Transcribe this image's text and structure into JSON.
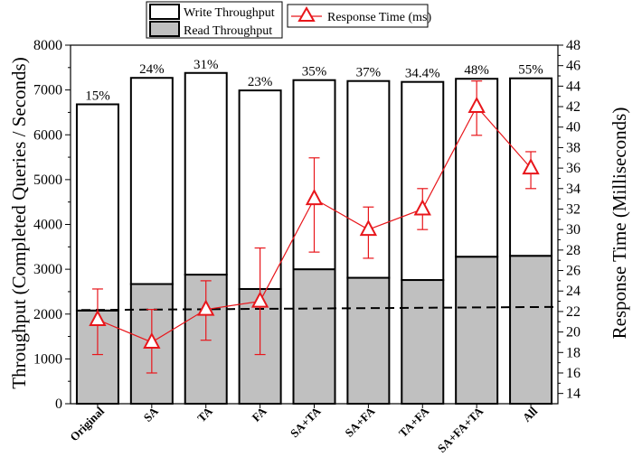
{
  "chart_data": {
    "type": "bar",
    "stacked": true,
    "categories": [
      "Original",
      "SA",
      "TA",
      "FA",
      "SA+TA",
      "SA+FA",
      "TA+FA",
      "SA+FA+TA",
      "All"
    ],
    "series": [
      {
        "name": "Read Throughput",
        "values": [
          2080,
          2670,
          2880,
          2560,
          3000,
          2810,
          2760,
          3280,
          3300
        ],
        "color": "#c0c0c0"
      },
      {
        "name": "Write Throughput",
        "values": [
          4600,
          4600,
          4500,
          4430,
          4220,
          4390,
          4420,
          3970,
          3960
        ],
        "color": "#ffffff"
      }
    ],
    "totals": [
      6680,
      7270,
      7380,
      6990,
      7220,
      7200,
      7180,
      7250,
      7260
    ],
    "bar_labels": [
      "15%",
      "24%",
      "31%",
      "23%",
      "35%",
      "37%",
      "34.4%",
      "48%",
      "55%"
    ],
    "line_series": {
      "name": "Response Time (ms)",
      "axis": "right",
      "color": "#e8161b",
      "values": [
        21.2,
        19.0,
        22.2,
        23.0,
        33.0,
        30.0,
        32.0,
        42.0,
        36.0
      ],
      "error_low": [
        17.8,
        16.0,
        19.2,
        17.8,
        27.8,
        27.2,
        30.0,
        39.2,
        34.0
      ],
      "error_high": [
        24.2,
        22.2,
        25.0,
        28.2,
        37.0,
        32.2,
        34.0,
        44.5,
        37.6
      ]
    },
    "baseline_dashed": {
      "start": 2090,
      "end": 2160
    },
    "xlabel": "",
    "ylabel": "Throughput (Completed Queries / Seconds)",
    "ylim": [
      0,
      8000
    ],
    "yticks": [
      "0",
      "1000",
      "2000",
      "3000",
      "4000",
      "5000",
      "6000",
      "7000",
      "8000"
    ],
    "y2label": "Response Time (Milliseconds)",
    "y2lim": [
      13,
      48
    ],
    "y2ticks": [
      "14",
      "16",
      "18",
      "20",
      "22",
      "24",
      "26",
      "28",
      "30",
      "32",
      "34",
      "36",
      "38",
      "40",
      "42",
      "44",
      "46",
      "48"
    ],
    "legend": {
      "placement": "top-center",
      "items": [
        "Write Throughput",
        "Read Throughput",
        "Response Time (ms)"
      ]
    },
    "grid": false
  }
}
